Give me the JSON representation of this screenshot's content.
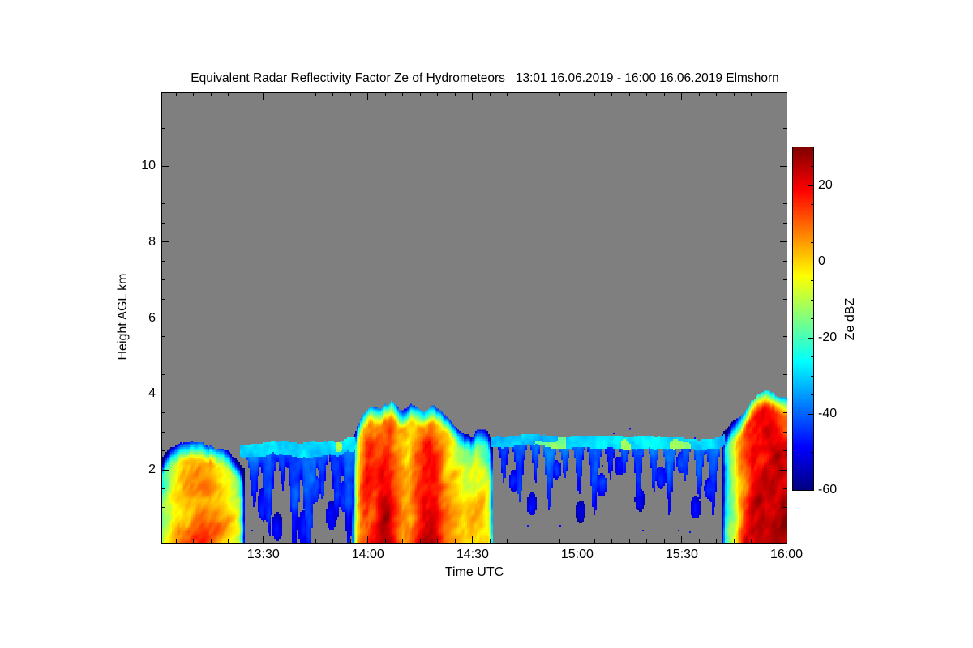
{
  "chart_data": {
    "type": "heatmap",
    "title": "Equivalent Radar Reflectivity Factor Ze of Hydrometeors   13:01 16.06.2019 - 16:00 16.06.2019 Elmshorn",
    "station": "Elmshorn",
    "date": "16.06.2019",
    "xlabel": "Time UTC",
    "ylabel": "Height AGL km",
    "x_start": "13:01",
    "x_end": "16:00",
    "time_span_min": 179,
    "x_major_ticks": [
      {
        "min": 29,
        "label": "13:30"
      },
      {
        "min": 59,
        "label": "14:00"
      },
      {
        "min": 89,
        "label": "14:30"
      },
      {
        "min": 119,
        "label": "15:00"
      },
      {
        "min": 149,
        "label": "15:30"
      },
      {
        "min": 179,
        "label": "16:00"
      }
    ],
    "x_minor_step_min": 5,
    "y_ticks_km": [
      2,
      4,
      6,
      8,
      10
    ],
    "y_minor_step_km": 0.5,
    "height_range_km": [
      0.08,
      11.92
    ],
    "no_signal_color": "#7f7f7f",
    "colorbar": {
      "label": "Ze dBZ",
      "ticks": [
        20,
        0,
        -20,
        -40,
        -60
      ],
      "minor_step": 5,
      "range_dbz": [
        -60,
        30
      ],
      "colormap": "jet"
    },
    "features": [
      {
        "kind": "convective",
        "label": "rain shower 13:01-13:24, echo top ~2.7 km, max ~14 dBZ",
        "t0": 0,
        "t1": 23.5,
        "shear": 9,
        "top_km": [
          [
            0,
            2.5
          ],
          [
            3,
            2.6
          ],
          [
            6,
            2.65
          ],
          [
            10,
            2.7
          ],
          [
            14,
            2.6
          ],
          [
            18,
            2.5
          ],
          [
            21,
            2.35
          ],
          [
            23.5,
            2.05
          ]
        ],
        "core_dbz": [
          [
            0,
            -12
          ],
          [
            3,
            4
          ],
          [
            6,
            9
          ],
          [
            9,
            13
          ],
          [
            12,
            14
          ],
          [
            15,
            11
          ],
          [
            18,
            4
          ],
          [
            21,
            -6
          ],
          [
            23.5,
            -20
          ]
        ]
      },
      {
        "kind": "layer",
        "label": "cloud layer ~2.7 km with virga 13:24-13:56, ~-30 dBZ",
        "t0": 22.5,
        "t1": 55.5,
        "dbz": -30,
        "thickness_km": 0.38,
        "top_km": [
          [
            22.5,
            2.65
          ],
          [
            28,
            2.7
          ],
          [
            34,
            2.75
          ],
          [
            40,
            2.7
          ],
          [
            46,
            2.72
          ],
          [
            51,
            2.78
          ],
          [
            55.5,
            2.85
          ]
        ],
        "virga": [
          [
            26.5,
            1.3,
            1.3
          ],
          [
            30.5,
            2.2,
            1.5
          ],
          [
            34.5,
            1.0,
            1.0
          ],
          [
            38,
            2.5,
            1.4
          ],
          [
            42,
            2.6,
            1.6
          ],
          [
            46,
            1.2,
            1.0
          ],
          [
            50,
            1.8,
            1.3
          ],
          [
            53.5,
            2.4,
            1.4
          ]
        ],
        "blobs": [
          [
            29,
            1.1,
            0.45,
            -46
          ],
          [
            33,
            0.5,
            0.4,
            -49
          ],
          [
            40.5,
            0.45,
            0.5,
            -47
          ],
          [
            44,
            1.5,
            0.35,
            -44
          ],
          [
            48.5,
            0.8,
            0.4,
            -48
          ],
          [
            52,
            1.3,
            0.4,
            -43
          ]
        ]
      },
      {
        "kind": "convective",
        "label": "main precipitation 13:56-14:36, echo top 3.4-3.8 km, max ~26 dBZ",
        "t0": 54.5,
        "t1": 95,
        "shear": 6,
        "top_km": [
          [
            54.5,
            2.8
          ],
          [
            57,
            3.45
          ],
          [
            60,
            3.75
          ],
          [
            63,
            3.6
          ],
          [
            66,
            3.8
          ],
          [
            69,
            3.55
          ],
          [
            72,
            3.7
          ],
          [
            75,
            3.45
          ],
          [
            78,
            3.65
          ],
          [
            81,
            3.4
          ],
          [
            84,
            3.2
          ],
          [
            87,
            2.95
          ],
          [
            89,
            2.9
          ],
          [
            91,
            3.15
          ],
          [
            93,
            3.05
          ],
          [
            95,
            2.75
          ]
        ],
        "core_dbz": [
          [
            54.5,
            -8
          ],
          [
            57,
            14
          ],
          [
            59,
            21
          ],
          [
            61,
            18
          ],
          [
            63,
            24
          ],
          [
            65,
            26
          ],
          [
            67,
            18
          ],
          [
            69,
            12
          ],
          [
            71,
            9
          ],
          [
            73,
            16
          ],
          [
            75,
            23
          ],
          [
            77,
            24
          ],
          [
            79,
            18
          ],
          [
            81,
            10
          ],
          [
            83,
            7
          ],
          [
            85,
            3
          ],
          [
            87,
            1
          ],
          [
            89,
            5
          ],
          [
            91,
            3
          ],
          [
            93,
            -2
          ],
          [
            95,
            -12
          ]
        ]
      },
      {
        "kind": "layer",
        "label": "thin stratus layer ~2.9 km with virga 14:36-15:42, ~-31 dBZ",
        "t0": 94.5,
        "t1": 161.5,
        "dbz": -31,
        "thickness_km": 0.3,
        "top_km": [
          [
            94.5,
            2.9
          ],
          [
            100,
            2.88
          ],
          [
            108,
            2.92
          ],
          [
            116,
            2.85
          ],
          [
            124,
            2.9
          ],
          [
            132,
            2.88
          ],
          [
            140,
            2.85
          ],
          [
            148,
            2.82
          ],
          [
            154,
            2.78
          ],
          [
            158,
            2.82
          ],
          [
            161.5,
            2.95
          ]
        ],
        "virga": [
          [
            98,
            0.9,
            1.0
          ],
          [
            102.5,
            1.5,
            1.2
          ],
          [
            107,
            1.0,
            0.9
          ],
          [
            111,
            1.8,
            1.1
          ],
          [
            115.5,
            0.8,
            0.9
          ],
          [
            119.5,
            1.2,
            1.0
          ],
          [
            124,
            1.9,
            1.2
          ],
          [
            128.5,
            1.0,
            0.9
          ],
          [
            132.5,
            0.7,
            0.8
          ],
          [
            136.5,
            1.5,
            1.0
          ],
          [
            141,
            1.1,
            0.9
          ],
          [
            145.5,
            1.7,
            1.1
          ],
          [
            150,
            0.9,
            0.9
          ],
          [
            154,
            1.3,
            1.0
          ],
          [
            158,
            1.8,
            1.2
          ]
        ],
        "blobs": [
          [
            101,
            1.7,
            0.3,
            -47
          ],
          [
            106,
            1.1,
            0.3,
            -50
          ],
          [
            113,
            2.0,
            0.25,
            -46
          ],
          [
            120,
            0.9,
            0.3,
            -50
          ],
          [
            126,
            1.6,
            0.3,
            -45
          ],
          [
            131,
            2.1,
            0.25,
            -48
          ],
          [
            137,
            1.2,
            0.3,
            -50
          ],
          [
            143,
            1.8,
            0.3,
            -46
          ],
          [
            149,
            2.2,
            0.3,
            -44
          ],
          [
            153,
            1.0,
            0.3,
            -49
          ],
          [
            157,
            1.5,
            0.3,
            -46
          ]
        ]
      },
      {
        "kind": "convective",
        "label": "strong shower 15:42-16:00, echo top ~4.1 km, max ~28 dBZ",
        "t0": 160.5,
        "t1": 179,
        "shear": 5,
        "top_km": [
          [
            160.5,
            2.9
          ],
          [
            163,
            3.15
          ],
          [
            166,
            3.5
          ],
          [
            169,
            3.85
          ],
          [
            171,
            4.05
          ],
          [
            173,
            4.12
          ],
          [
            175,
            4.05
          ],
          [
            177,
            3.95
          ],
          [
            179,
            3.9
          ]
        ],
        "core_dbz": [
          [
            160.5,
            -28
          ],
          [
            162,
            -16
          ],
          [
            164,
            -2
          ],
          [
            166,
            12
          ],
          [
            168,
            20
          ],
          [
            170,
            25
          ],
          [
            172,
            27
          ],
          [
            174,
            28
          ],
          [
            176,
            27
          ],
          [
            179,
            25
          ]
        ]
      }
    ]
  }
}
